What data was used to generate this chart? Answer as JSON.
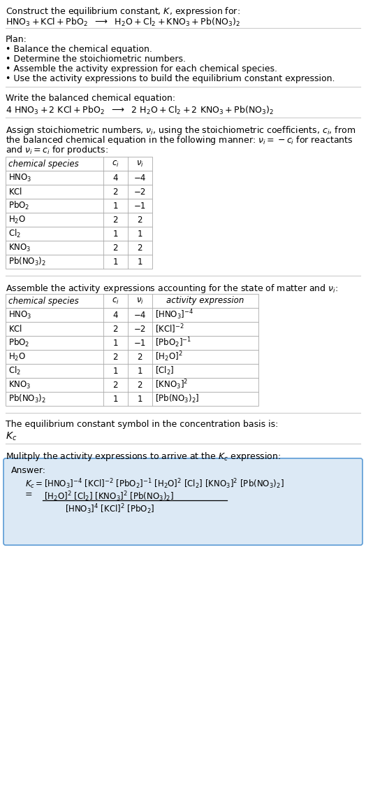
{
  "bg_color": "#ffffff",
  "text_color": "#000000",
  "table_border_color": "#aaaaaa",
  "answer_box_color": "#dce9f5",
  "answer_box_border": "#5b9bd5",
  "font_size": 9.0,
  "small_font": 8.5,
  "title": "Construct the equilibrium constant, $K$, expression for:",
  "reaction_unbalanced": "$\\mathrm{HNO_3 + KCl + PbO_2}$  $\\longrightarrow$  $\\mathrm{H_2O + Cl_2 + KNO_3 + Pb(NO_3)_2}$",
  "plan_header": "Plan:",
  "plan_items": [
    "• Balance the chemical equation.",
    "• Determine the stoichiometric numbers.",
    "• Assemble the activity expression for each chemical species.",
    "• Use the activity expressions to build the equilibrium constant expression."
  ],
  "balanced_header": "Write the balanced chemical equation:",
  "balanced_eq": "$\\mathrm{4\\ HNO_3 + 2\\ KCl + PbO_2}$  $\\longrightarrow$  $\\mathrm{2\\ H_2O + Cl_2 + 2\\ KNO_3 + Pb(NO_3)_2}$",
  "stoich_header_parts": [
    "Assign stoichiometric numbers, $\\nu_i$, using the stoichiometric coefficients, $c_i$, from",
    "the balanced chemical equation in the following manner: $\\nu_i = -c_i$ for reactants",
    "and $\\nu_i = c_i$ for products:"
  ],
  "table1_headers": [
    "chemical species",
    "$c_i$",
    "$\\nu_i$"
  ],
  "table1_rows": [
    [
      "$\\mathrm{HNO_3}$",
      "4",
      "−4"
    ],
    [
      "$\\mathrm{KCl}$",
      "2",
      "−2"
    ],
    [
      "$\\mathrm{PbO_2}$",
      "1",
      "−1"
    ],
    [
      "$\\mathrm{H_2O}$",
      "2",
      "2"
    ],
    [
      "$\\mathrm{Cl_2}$",
      "1",
      "1"
    ],
    [
      "$\\mathrm{KNO_3}$",
      "2",
      "2"
    ],
    [
      "$\\mathrm{Pb(NO_3)_2}$",
      "1",
      "1"
    ]
  ],
  "activity_header": "Assemble the activity expressions accounting for the state of matter and $\\nu_i$:",
  "table2_headers": [
    "chemical species",
    "$c_i$",
    "$\\nu_i$",
    "activity expression"
  ],
  "table2_rows": [
    [
      "$\\mathrm{HNO_3}$",
      "4",
      "−4",
      "$\\mathrm{[HNO_3]^{-4}}$"
    ],
    [
      "$\\mathrm{KCl}$",
      "2",
      "−2",
      "$\\mathrm{[KCl]^{-2}}$"
    ],
    [
      "$\\mathrm{PbO_2}$",
      "1",
      "−1",
      "$\\mathrm{[PbO_2]^{-1}}$"
    ],
    [
      "$\\mathrm{H_2O}$",
      "2",
      "2",
      "$\\mathrm{[H_2O]^2}$"
    ],
    [
      "$\\mathrm{Cl_2}$",
      "1",
      "1",
      "$\\mathrm{[Cl_2]}$"
    ],
    [
      "$\\mathrm{KNO_3}$",
      "2",
      "2",
      "$\\mathrm{[KNO_3]^2}$"
    ],
    [
      "$\\mathrm{Pb(NO_3)_2}$",
      "1",
      "1",
      "$\\mathrm{[Pb(NO_3)_2]}$"
    ]
  ],
  "kc_header": "The equilibrium constant symbol in the concentration basis is:",
  "kc_symbol": "$K_c$",
  "multiply_header": "Mulitply the activity expressions to arrive at the $K_c$ expression:",
  "answer_label": "Answer:",
  "kc_line1": "$K_c = \\mathrm{[HNO_3]^{-4}\\ [KCl]^{-2}\\ [PbO_2]^{-1}\\ [H_2O]^{2}\\ [Cl_2]\\ [KNO_3]^{2}\\ [Pb(NO_3)_2]}$",
  "kc_numerator": "$\\mathrm{[H_2O]^2\\ [Cl_2]\\ [KNO_3]^2\\ [Pb(NO_3)_2]}$",
  "kc_denominator": "$\\mathrm{[HNO_3]^4\\ [KCl]^2\\ [PbO_2]}$"
}
